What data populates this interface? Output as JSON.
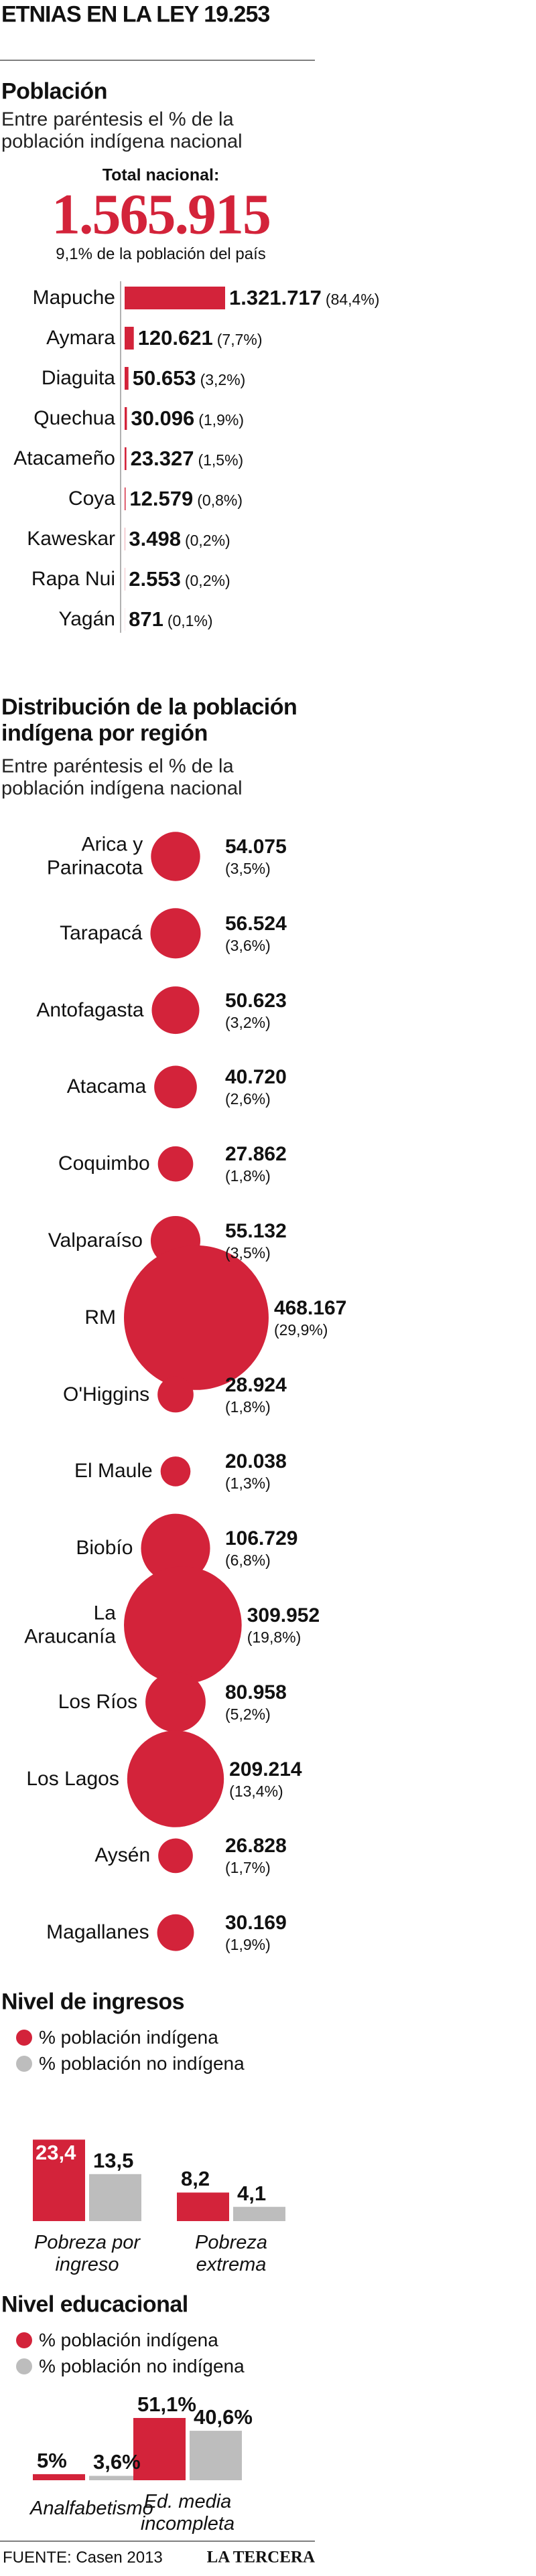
{
  "title": "ETNIAS EN LA LEY 19.253",
  "source": "FUENTE: Casen 2013",
  "brand": "LA TERCERA",
  "chart_data": [
    {
      "type": "bar",
      "orientation": "horizontal",
      "title": "Población",
      "subtitle": "Entre paréntesis el % de la población indígena nacional",
      "total_caption": "Total nacional:",
      "total_text": "1.565.915",
      "total_note": "9,1% de la población del país",
      "color": "#d3233a",
      "categories": [
        "Mapuche",
        "Aymara",
        "Diaguita",
        "Quechua",
        "Atacameño",
        "Coya",
        "Kaweskar",
        "Rapa Nui",
        "Yagán"
      ],
      "values": [
        1321717,
        120621,
        50653,
        30096,
        23327,
        12579,
        3498,
        2553,
        871
      ],
      "value_labels": [
        "1.321.717",
        "120.621",
        "50.653",
        "30.096",
        "23.327",
        "12.579",
        "3.498",
        "2.553",
        "871"
      ],
      "share_labels": [
        "(84,4%)",
        "(7,7%)",
        "(3,2%)",
        "(1,9%)",
        "(1,5%)",
        "(0,8%)",
        "(0,2%)",
        "(0,2%)",
        "(0,1%)"
      ]
    },
    {
      "type": "bubble",
      "title": "Distribución de la población indígena por región",
      "subtitle": "Entre paréntesis el % de la población indígena nacional",
      "color": "#d3233a",
      "categories": [
        "Arica y Parinacota",
        "Tarapacá",
        "Antofagasta",
        "Atacama",
        "Coquimbo",
        "Valparaíso",
        "RM",
        "O'Higgins",
        "El Maule",
        "Biobío",
        "La Araucanía",
        "Los Ríos",
        "Los Lagos",
        "Aysén",
        "Magallanes"
      ],
      "values": [
        54075,
        56524,
        50623,
        40720,
        27862,
        55132,
        468167,
        28924,
        20038,
        106729,
        309952,
        80958,
        209214,
        26828,
        30169
      ],
      "value_labels": [
        "54.075",
        "56.524",
        "50.623",
        "40.720",
        "27.862",
        "55.132",
        "468.167",
        "28.924",
        "20.038",
        "106.729",
        "309.952",
        "80.958",
        "209.214",
        "26.828",
        "30.169"
      ],
      "share_labels": [
        "(3,5%)",
        "(3,6%)",
        "(3,2%)",
        "(2,6%)",
        "(1,8%)",
        "(3,5%)",
        "(29,9%)",
        "(1,8%)",
        "(1,3%)",
        "(6,8%)",
        "(19,8%)",
        "(5,2%)",
        "(13,4%)",
        "(1,7%)",
        "(1,9%)"
      ]
    },
    {
      "type": "bar",
      "orientation": "vertical",
      "title": "Nivel de ingresos",
      "categories": [
        "Pobreza por ingreso",
        "Pobreza extrema"
      ],
      "series": [
        {
          "name": "% población indígena",
          "color": "#d3233a",
          "values": [
            23.4,
            8.2
          ],
          "value_labels": [
            "23,4",
            "8,2"
          ]
        },
        {
          "name": "% población no indígena",
          "color": "#bdbdbd",
          "values": [
            13.5,
            4.1
          ],
          "value_labels": [
            "13,5",
            "4,1"
          ]
        }
      ]
    },
    {
      "type": "bar",
      "orientation": "vertical",
      "title": "Nivel educacional",
      "categories": [
        "Analfabetismo",
        "Ed. media incompleta"
      ],
      "series": [
        {
          "name": "% población indígena",
          "color": "#d3233a",
          "values": [
            5,
            51.1
          ],
          "value_labels": [
            "5%",
            "51,1%"
          ]
        },
        {
          "name": "% población no indígena",
          "color": "#bdbdbd",
          "values": [
            3.6,
            40.6
          ],
          "value_labels": [
            "3,6%",
            "40,6%"
          ]
        }
      ]
    }
  ]
}
